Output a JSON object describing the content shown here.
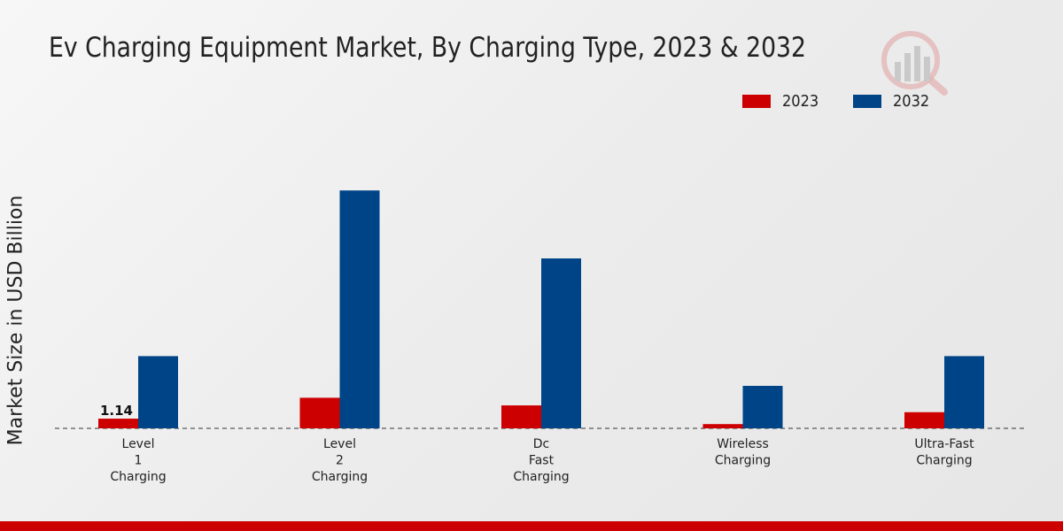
{
  "chart_data": {
    "type": "bar",
    "title": "Ev Charging Equipment Market, By Charging Type, 2023 & 2032",
    "ylabel": "Market Size in USD Billion",
    "xlabel": "",
    "categories": [
      [
        "Level",
        "1",
        "Charging"
      ],
      [
        "Level",
        "2",
        "Charging"
      ],
      [
        "Dc",
        "Fast",
        "Charging"
      ],
      [
        "Wireless",
        "Charging"
      ],
      [
        "Ultra-Fast",
        "Charging"
      ]
    ],
    "series": [
      {
        "name": "2023",
        "color": "#cc0000",
        "values": [
          1.14,
          3.6,
          2.7,
          0.5,
          1.9
        ]
      },
      {
        "name": "2032",
        "color": "#004488",
        "values": [
          8.5,
          28.0,
          20.0,
          5.0,
          8.5
        ]
      }
    ],
    "data_labels": [
      {
        "series": 0,
        "index": 0,
        "text": "1.14"
      }
    ],
    "ylim": [
      0,
      40
    ],
    "grid": false,
    "legend_position": "top-right"
  },
  "watermark": {
    "icon": "chart-logo-icon"
  }
}
